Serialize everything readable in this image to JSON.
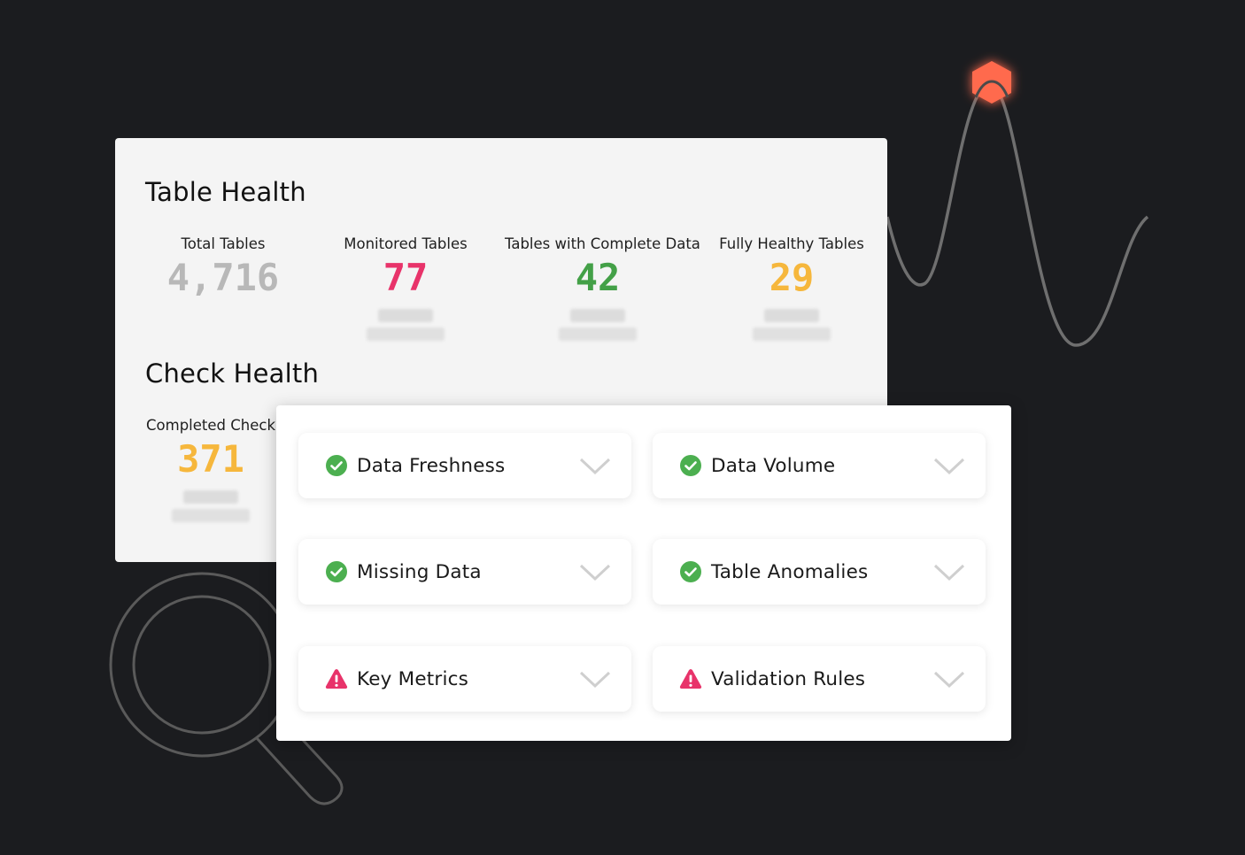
{
  "table_health": {
    "title": "Table Health",
    "stats": [
      {
        "label": "Total Tables",
        "value": "4,716",
        "color": "#b8b8b8"
      },
      {
        "label": "Monitored Tables",
        "value": "77",
        "color": "#e8336a"
      },
      {
        "label": "Tables with Complete Data",
        "value": "42",
        "color": "#43a047"
      },
      {
        "label": "Fully Healthy Tables",
        "value": "29",
        "color": "#f6b73c"
      }
    ]
  },
  "check_health": {
    "title": "Check Health",
    "stats": [
      {
        "label": "Completed Check",
        "value": "371",
        "color": "#f6b73c"
      }
    ]
  },
  "checks": [
    {
      "label": "Data Freshness",
      "status": "pass",
      "icon": "check-circle-icon"
    },
    {
      "label": "Data Volume",
      "status": "pass",
      "icon": "check-circle-icon"
    },
    {
      "label": "Missing Data",
      "status": "pass",
      "icon": "check-circle-icon"
    },
    {
      "label": "Table Anomalies",
      "status": "pass",
      "icon": "check-circle-icon"
    },
    {
      "label": "Key Metrics",
      "status": "warning",
      "icon": "warning-triangle-icon"
    },
    {
      "label": "Validation Rules",
      "status": "warning",
      "icon": "warning-triangle-icon"
    }
  ],
  "colors": {
    "background": "#1b1c1f",
    "pass": "#4caf50",
    "warning": "#e8336a",
    "accent": "#ff6a4d"
  }
}
